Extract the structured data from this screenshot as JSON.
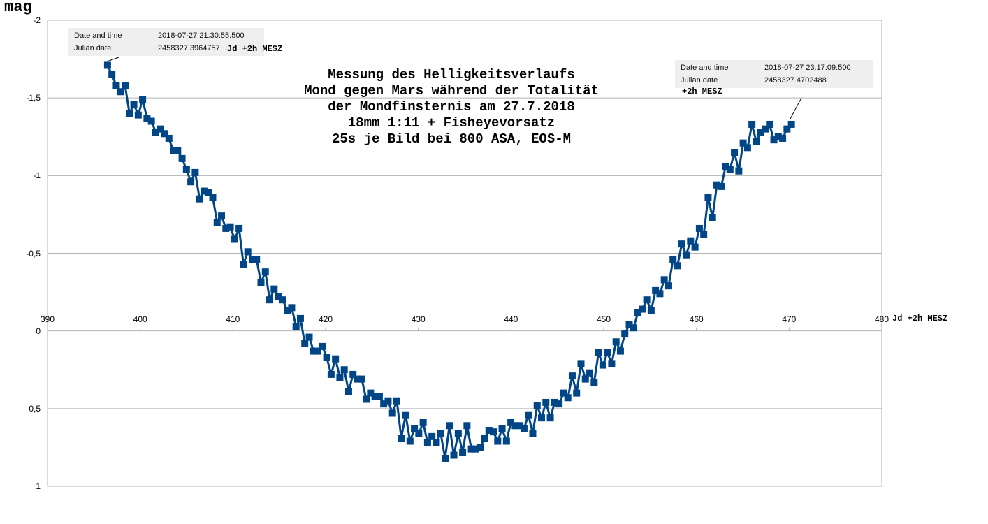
{
  "chart_data": {
    "type": "line",
    "title": [
      "Messung des Helligkeitsverlaufs",
      "Mond gegen Mars während der Totalität",
      "der Mondfinsternis am 27.7.2018",
      "18mm 1:11 + Fisheyevorsatz",
      "25s je Bild bei 800 ASA, EOS-M"
    ],
    "xlabel": "Jd +2h MESZ",
    "ylabel": "mag",
    "xlim": [
      390,
      480
    ],
    "ylim": [
      -2,
      1
    ],
    "y_reversed": true,
    "grid": true,
    "x_ticks": [
      "390",
      "400",
      "410",
      "420",
      "430",
      "440",
      "450",
      "460",
      "470",
      "480"
    ],
    "y_ticks": [
      "-2",
      "-1,5",
      "-1",
      "-0,5",
      "0",
      "0,5",
      "1"
    ],
    "series": [
      {
        "name": "mag",
        "color": "#004586",
        "x_start": 396.4757,
        "x_end": 470.2488,
        "values": [
          -1.71,
          -1.65,
          -1.58,
          -1.54,
          -1.58,
          -1.4,
          -1.46,
          -1.39,
          -1.49,
          -1.37,
          -1.35,
          -1.28,
          -1.3,
          -1.27,
          -1.24,
          -1.16,
          -1.16,
          -1.11,
          -1.04,
          -0.96,
          -1.02,
          -0.85,
          -0.9,
          -0.89,
          -0.86,
          -0.7,
          -0.74,
          -0.66,
          -0.67,
          -0.59,
          -0.66,
          -0.43,
          -0.51,
          -0.46,
          -0.46,
          -0.31,
          -0.38,
          -0.2,
          -0.27,
          -0.22,
          -0.2,
          -0.13,
          -0.15,
          -0.03,
          -0.08,
          0.08,
          0.04,
          0.13,
          0.13,
          0.1,
          0.17,
          0.28,
          0.18,
          0.3,
          0.25,
          0.39,
          0.28,
          0.31,
          0.31,
          0.44,
          0.4,
          0.42,
          0.42,
          0.47,
          0.45,
          0.53,
          0.45,
          0.69,
          0.54,
          0.71,
          0.63,
          0.66,
          0.59,
          0.72,
          0.68,
          0.72,
          0.66,
          0.82,
          0.61,
          0.8,
          0.66,
          0.78,
          0.61,
          0.76,
          0.76,
          0.75,
          0.69,
          0.64,
          0.65,
          0.71,
          0.63,
          0.71,
          0.59,
          0.61,
          0.61,
          0.63,
          0.54,
          0.66,
          0.48,
          0.56,
          0.46,
          0.56,
          0.46,
          0.47,
          0.4,
          0.43,
          0.29,
          0.4,
          0.21,
          0.31,
          0.27,
          0.33,
          0.14,
          0.22,
          0.14,
          0.21,
          0.07,
          0.13,
          0.02,
          -0.04,
          -0.02,
          -0.12,
          -0.14,
          -0.2,
          -0.13,
          -0.26,
          -0.24,
          -0.33,
          -0.29,
          -0.46,
          -0.42,
          -0.56,
          -0.49,
          -0.58,
          -0.54,
          -0.66,
          -0.62,
          -0.86,
          -0.73,
          -0.94,
          -0.93,
          -1.06,
          -1.04,
          -1.15,
          -1.03,
          -1.21,
          -1.18,
          -1.33,
          -1.22,
          -1.28,
          -1.3,
          -1.33,
          -1.23,
          -1.25,
          -1.24,
          -1.3,
          -1.33
        ]
      }
    ],
    "annotations": {
      "start": {
        "k1": "Date and time",
        "v1": "2018-07-27 21:30:55.500",
        "k2": "Julian date",
        "v2": "2458327.3964757",
        "note": "Jd +2h MESZ"
      },
      "end": {
        "k1": "Date and time",
        "v1": "2018-07-27 23:17:09.500",
        "k2": "Julian date",
        "v2": "2458327.4702488",
        "note": "+2h MESZ"
      }
    }
  }
}
